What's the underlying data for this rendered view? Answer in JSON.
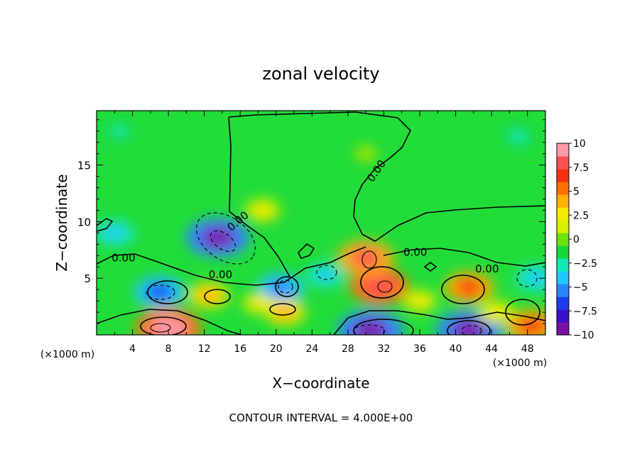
{
  "chart_data": {
    "type": "heatmap",
    "title": "zonal velocity",
    "xlabel": "X−coordinate",
    "ylabel": "Z−coordinate",
    "x_unit_label": "(×1000 m)",
    "x_unit_label_right": "(×1000 m)",
    "footer": "CONTOUR INTERVAL = 4.000E+00",
    "xlim": [
      0,
      50
    ],
    "ylim": [
      0,
      19.8
    ],
    "x_ticks": [
      4,
      8,
      12,
      16,
      20,
      24,
      28,
      32,
      36,
      40,
      44,
      48
    ],
    "y_ticks": [
      5,
      10,
      15
    ],
    "colorbar": {
      "range": [
        -10,
        10
      ],
      "ticks": [
        "10",
        "7.5",
        "5",
        "2.5",
        "0",
        "−2.5",
        "−5",
        "−7.5",
        "−10"
      ],
      "colors": [
        "#7a10a8",
        "#3a10c8",
        "#1e3cf0",
        "#2a86ff",
        "#20c8ff",
        "#12e8b8",
        "#18d838",
        "#70e010",
        "#d8f000",
        "#f8e800",
        "#ffb000",
        "#ff7000",
        "#f83010",
        "#ff5050",
        "#ff9aa8"
      ]
    },
    "contour_labels": [
      {
        "text": "0.00",
        "x": 16,
        "z": 9.8,
        "angle": -40
      },
      {
        "text": "0.00",
        "x": 31.5,
        "z": 14.3,
        "angle": -55
      },
      {
        "text": "0.00",
        "x": 3,
        "z": 6.5,
        "angle": 0
      },
      {
        "text": "0.00",
        "x": 13.8,
        "z": 5.0,
        "angle": 0
      },
      {
        "text": "0.00",
        "x": 35.5,
        "z": 7.0,
        "angle": 0
      },
      {
        "text": "0.00",
        "x": 43.5,
        "z": 5.5,
        "angle": 0
      }
    ],
    "features": [
      {
        "x": 13.5,
        "z": 8.6,
        "value": -9.5
      },
      {
        "x": 18.5,
        "z": 11.0,
        "value": 3.2
      },
      {
        "x": 7.0,
        "z": 3.8,
        "value": -6.5
      },
      {
        "x": 20.5,
        "z": 4.1,
        "value": -6.0
      },
      {
        "x": 25.5,
        "z": 5.3,
        "value": -4.0
      },
      {
        "x": 31.5,
        "z": 4.3,
        "value": 8.5
      },
      {
        "x": 30.0,
        "z": 6.8,
        "value": 8.0
      },
      {
        "x": 41.5,
        "z": 4.2,
        "value": 6.5
      },
      {
        "x": 8.0,
        "z": 0.6,
        "value": 10.0
      },
      {
        "x": 30.5,
        "z": 0.4,
        "value": -10.0
      },
      {
        "x": 41.5,
        "z": 0.4,
        "value": -10.0
      },
      {
        "x": 48.5,
        "z": 0.8,
        "value": 7.0
      },
      {
        "x": 49.0,
        "z": 5.0,
        "value": -5.0
      },
      {
        "x": 12.5,
        "z": 3.5,
        "value": 4.5
      },
      {
        "x": 21.0,
        "z": 2.0,
        "value": 4.5
      },
      {
        "x": 18.0,
        "z": 2.8,
        "value": 2.5
      },
      {
        "x": 2.5,
        "z": 18.0,
        "value": -2.5
      },
      {
        "x": 2.0,
        "z": 9.0,
        "value": -4.5
      },
      {
        "x": 47.0,
        "z": 17.5,
        "value": -3.5
      },
      {
        "x": 36.0,
        "z": 3.0,
        "value": 3.0
      },
      {
        "x": 44.5,
        "z": 2.0,
        "value": 3.5
      },
      {
        "x": 30.0,
        "z": 16.0,
        "value": 0.8
      }
    ]
  }
}
